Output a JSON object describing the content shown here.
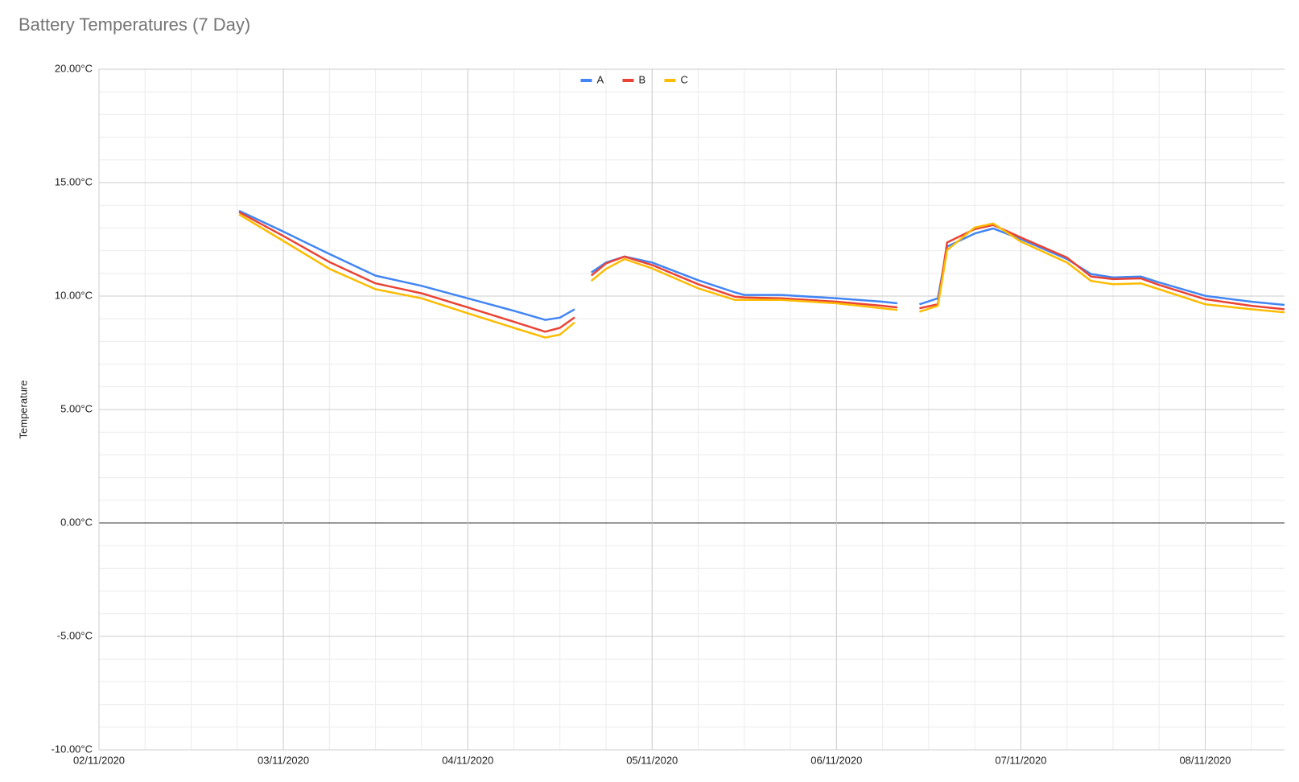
{
  "chart_data": {
    "type": "line",
    "title": "Battery Temperatures (7 Day)",
    "y_label": "Temperature",
    "x": [
      0.76,
      1,
      1.25,
      1.5,
      1.75,
      2,
      2.25,
      2.42,
      2.5,
      2.58,
      2.63,
      2.67,
      2.75,
      2.85,
      3,
      3.25,
      3.45,
      3.5,
      3.7,
      4,
      4.25,
      4.33,
      4.39,
      4.45,
      4.55,
      4.6,
      4.75,
      4.85,
      5,
      5.25,
      5.38,
      5.5,
      5.65,
      5.75,
      6,
      6.25,
      6.43
    ],
    "series": [
      {
        "name": "A",
        "color": "#4285f4",
        "values": [
          13.76,
          12.84,
          11.85,
          10.9,
          10.45,
          9.9,
          9.35,
          8.95,
          9.05,
          9.42,
          null,
          11.04,
          11.48,
          11.74,
          11.48,
          10.7,
          10.16,
          10.05,
          10.05,
          9.9,
          9.75,
          9.68,
          null,
          9.64,
          9.9,
          12.18,
          12.76,
          12.98,
          12.51,
          11.63,
          10.97,
          10.82,
          10.86,
          10.6,
          10.01,
          9.75,
          9.61
        ]
      },
      {
        "name": "B",
        "color": "#ea4335",
        "values": [
          13.7,
          12.65,
          11.5,
          10.56,
          10.12,
          9.5,
          8.87,
          8.43,
          8.6,
          9.06,
          null,
          10.9,
          11.44,
          11.74,
          11.37,
          10.52,
          9.97,
          9.94,
          9.9,
          9.75,
          9.57,
          9.5,
          null,
          9.46,
          9.64,
          12.36,
          12.95,
          13.13,
          12.58,
          11.7,
          10.86,
          10.75,
          10.78,
          10.49,
          9.86,
          9.57,
          9.42
        ]
      },
      {
        "name": "C",
        "color": "#fbbc04",
        "values": [
          13.6,
          12.43,
          11.2,
          10.3,
          9.9,
          9.24,
          8.6,
          8.17,
          8.3,
          8.84,
          null,
          10.67,
          11.2,
          11.63,
          11.22,
          10.34,
          9.83,
          9.83,
          9.83,
          9.68,
          9.46,
          9.39,
          null,
          9.31,
          9.57,
          12.03,
          13.02,
          13.2,
          12.4,
          11.48,
          10.67,
          10.52,
          10.56,
          10.3,
          9.64,
          9.42,
          9.28
        ]
      }
    ],
    "xlim": [
      0,
      6.43
    ],
    "xticks": [
      {
        "value": 0,
        "label": "02/11/2020"
      },
      {
        "value": 1,
        "label": "03/11/2020"
      },
      {
        "value": 2,
        "label": "04/11/2020"
      },
      {
        "value": 3,
        "label": "05/11/2020"
      },
      {
        "value": 4,
        "label": "06/11/2020"
      },
      {
        "value": 5,
        "label": "07/11/2020"
      },
      {
        "value": 6,
        "label": "08/11/2020"
      }
    ],
    "ylim": [
      -10,
      20
    ],
    "yticks": [
      {
        "value": -10,
        "label": "-10.00°C"
      },
      {
        "value": -5,
        "label": "-5.00°C"
      },
      {
        "value": 0,
        "label": "0.00°C"
      },
      {
        "value": 5,
        "label": "5.00°C"
      },
      {
        "value": 10,
        "label": "10.00°C"
      },
      {
        "value": 15,
        "label": "15.00°C"
      },
      {
        "value": 20,
        "label": "20.00°C"
      }
    ],
    "grid": true,
    "legend": "top"
  }
}
